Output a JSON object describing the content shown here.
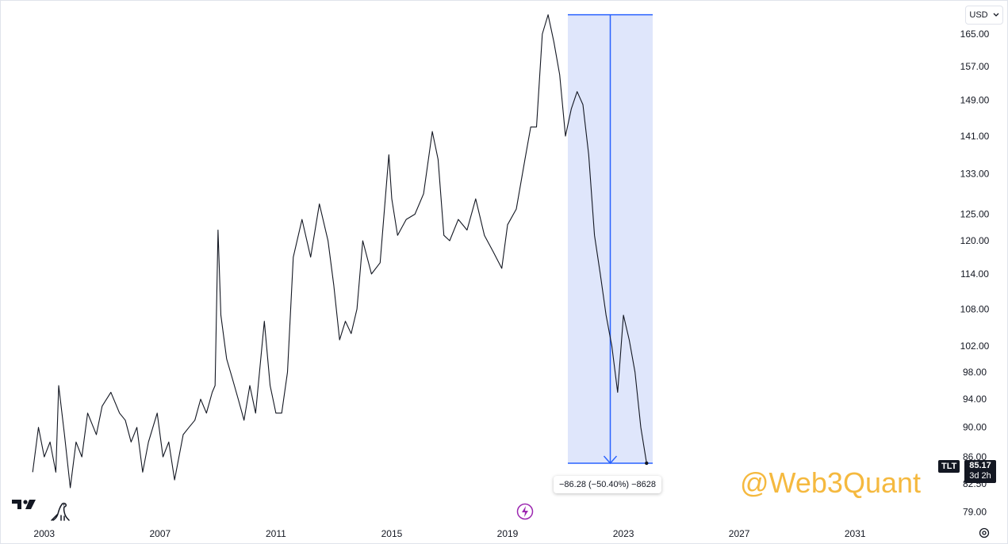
{
  "currency": {
    "label": "USD",
    "chevron_icon": "chevron-down-icon"
  },
  "ticker": "TLT",
  "last_price": {
    "value": "85.17",
    "countdown": "3d 2h"
  },
  "watermark": "@Web3Quant",
  "measure": {
    "label": "−86.28 (−50.40%) −8628"
  },
  "colors": {
    "line": "#131722",
    "measure_fill": "#dde5fb",
    "measure_stroke": "#2962ff",
    "watermark": "#f5b93f"
  },
  "chart_data": {
    "type": "line",
    "symbol": "TLT",
    "y_scale": "log",
    "ylim": [
      78,
      172
    ],
    "xlim": [
      2001.5,
      2034.5
    ],
    "x_ticks": [
      2003,
      2007,
      2011,
      2015,
      2019,
      2023,
      2027,
      2031
    ],
    "x_tick_labels": [
      "2003",
      "2007",
      "2011",
      "2015",
      "2019",
      "2023",
      "2027",
      "2031"
    ],
    "y_ticks": [
      79,
      82.5,
      86,
      90,
      94,
      98,
      102,
      108,
      114,
      120,
      125,
      133,
      141,
      149,
      157,
      165
    ],
    "y_tick_labels": [
      "79.00",
      "82.50",
      "86.00",
      "90.00",
      "94.00",
      "98.00",
      "102.00",
      "108.00",
      "114.00",
      "120.00",
      "125.00",
      "133.00",
      "141.00",
      "149.00",
      "157.00",
      "165.00"
    ],
    "series": [
      {
        "x": [
          2002.6,
          2002.8,
          2003.0,
          2003.2,
          2003.4,
          2003.5,
          2003.7,
          2003.9,
          2004.1,
          2004.3,
          2004.5,
          2004.8,
          2005.0,
          2005.3,
          2005.6,
          2005.8,
          2006.0,
          2006.2,
          2006.4,
          2006.6,
          2006.9,
          2007.1,
          2007.3,
          2007.5,
          2007.8,
          2008.0,
          2008.2,
          2008.4,
          2008.6,
          2008.8,
          2008.9,
          2009.0,
          2009.1,
          2009.3,
          2009.5,
          2009.7,
          2009.9,
          2010.1,
          2010.3,
          2010.6,
          2010.8,
          2011.0,
          2011.2,
          2011.4,
          2011.6,
          2011.9,
          2012.2,
          2012.5,
          2012.8,
          2013.0,
          2013.2,
          2013.4,
          2013.6,
          2013.8,
          2014.0,
          2014.3,
          2014.6,
          2014.9,
          2015.0,
          2015.2,
          2015.5,
          2015.8,
          2016.1,
          2016.4,
          2016.6,
          2016.8,
          2017.0,
          2017.3,
          2017.6,
          2017.9,
          2018.2,
          2018.5,
          2018.8,
          2019.0,
          2019.3,
          2019.6,
          2019.8,
          2020.0,
          2020.2,
          2020.4,
          2020.6,
          2020.8,
          2021.0,
          2021.2,
          2021.4,
          2021.6,
          2021.8,
          2022.0,
          2022.2,
          2022.4,
          2022.6,
          2022.8,
          2023.0,
          2023.2,
          2023.4,
          2023.6,
          2023.8
        ],
        "values": [
          84,
          90,
          86,
          88,
          84,
          96,
          89,
          82,
          88,
          86,
          92,
          89,
          93,
          95,
          92,
          91,
          88,
          90,
          84,
          88,
          92,
          86,
          88,
          83,
          89,
          90,
          91,
          94,
          92,
          95,
          96,
          122,
          107,
          100,
          97,
          94,
          91,
          96,
          92,
          106,
          96,
          92,
          92,
          98,
          117,
          124,
          117,
          127,
          120,
          112,
          103,
          106,
          104,
          108,
          120,
          114,
          116,
          137,
          128,
          121,
          124,
          125,
          129,
          142,
          136,
          121,
          120,
          124,
          122,
          128,
          121,
          118,
          115,
          123,
          126,
          136,
          143,
          143,
          165,
          170,
          163,
          155,
          141,
          147,
          151,
          148,
          137,
          121,
          114,
          107,
          102,
          95,
          107,
          103,
          98,
          90,
          85.17
        ]
      }
    ]
  }
}
